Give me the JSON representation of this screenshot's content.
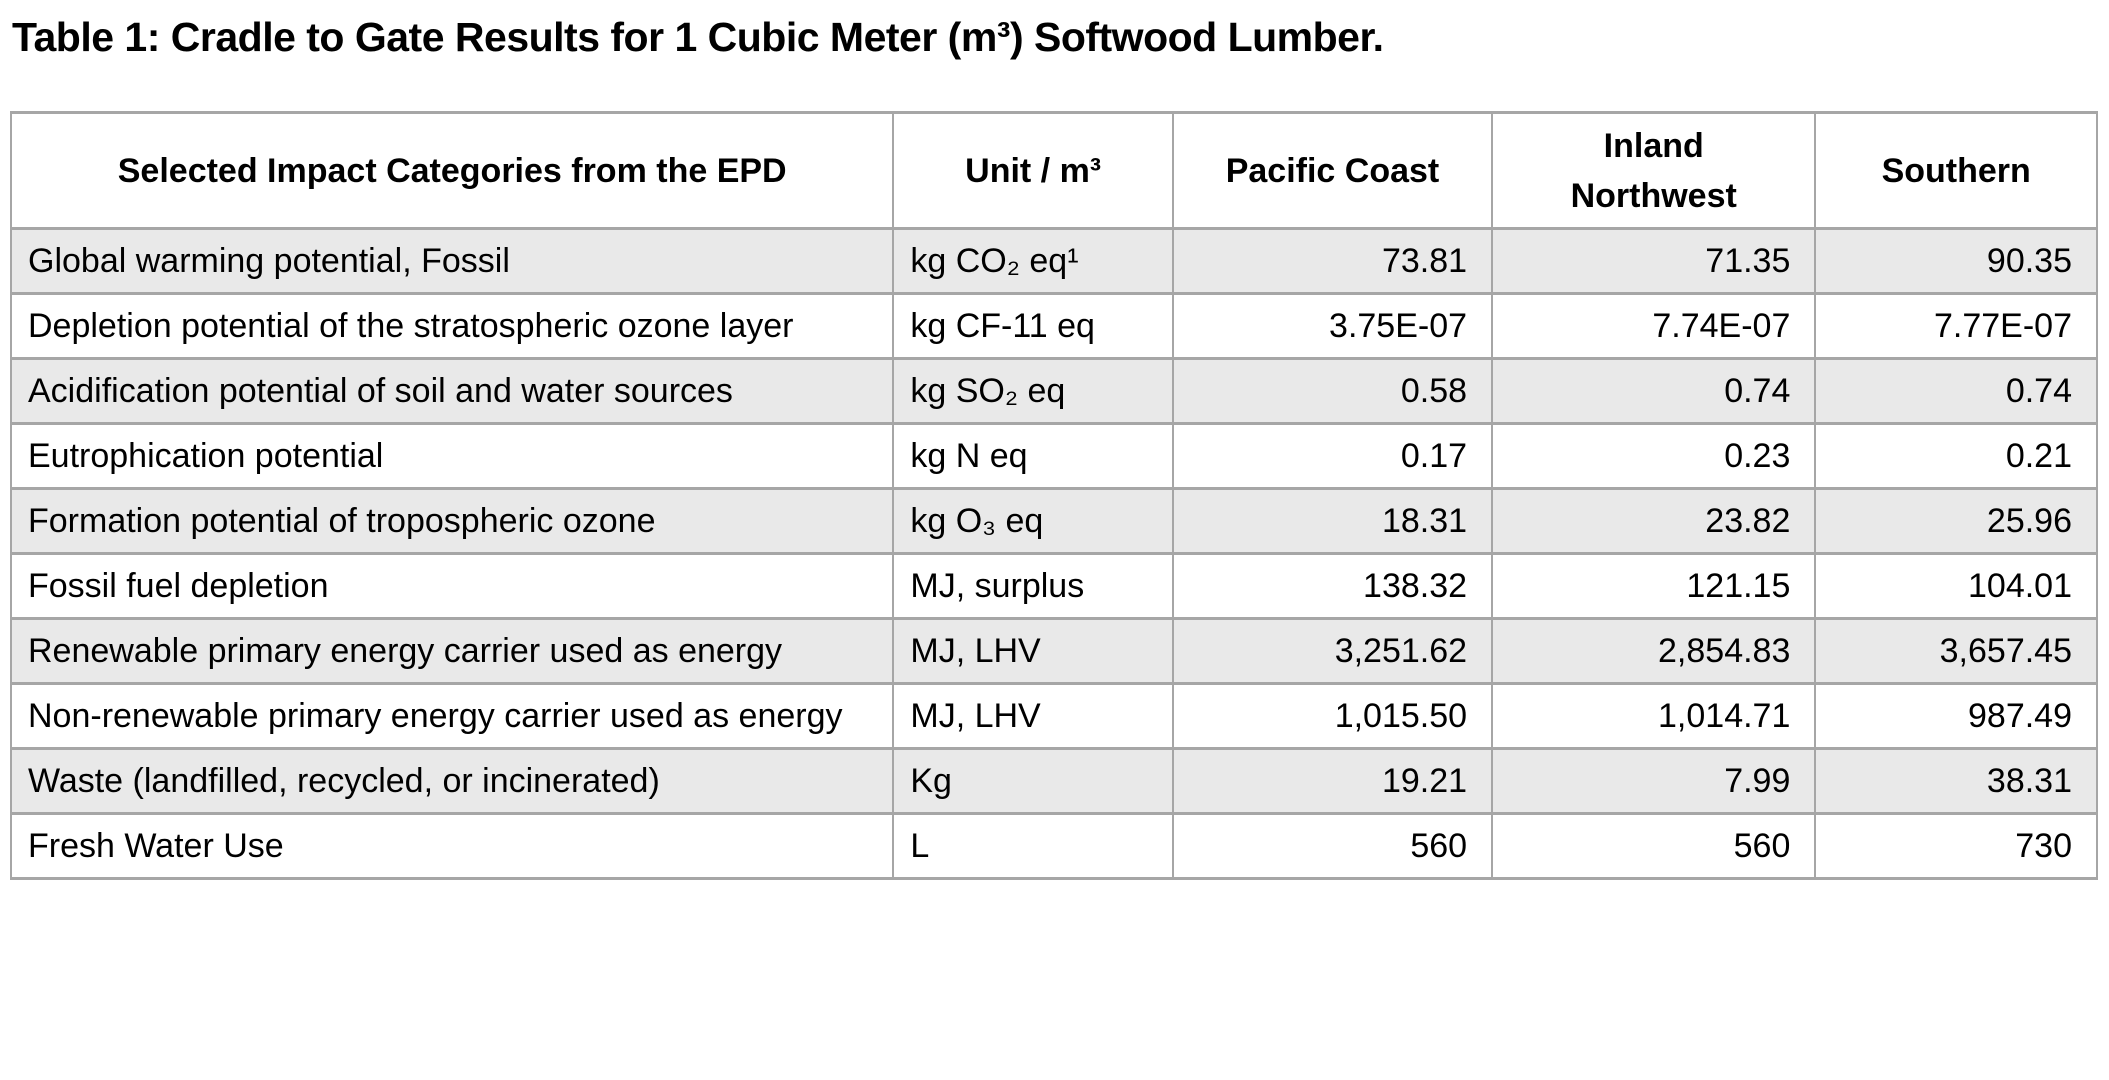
{
  "title": "Table 1: Cradle to Gate Results for 1 Cubic Meter (m³) Softwood Lumber.",
  "table": {
    "columns": [
      "Selected Impact Categories from the EPD",
      "Unit / m³",
      "Pacific Coast",
      "Inland Northwest",
      "Southern"
    ],
    "rows": [
      {
        "category": "Global warming potential, Fossil",
        "unit": "kg CO₂ eq¹",
        "values": [
          "73.81",
          "71.35",
          "90.35"
        ]
      },
      {
        "category": "Depletion potential of the stratospheric ozone layer",
        "unit": "kg CF-11 eq",
        "values": [
          "3.75E-07",
          "7.74E-07",
          "7.77E-07"
        ]
      },
      {
        "category": "Acidification potential of soil and water sources",
        "unit": "kg SO₂ eq",
        "values": [
          "0.58",
          "0.74",
          "0.74"
        ]
      },
      {
        "category": "Eutrophication potential",
        "unit": "kg N eq",
        "values": [
          "0.17",
          "0.23",
          "0.21"
        ]
      },
      {
        "category": "Formation potential of tropospheric ozone",
        "unit": "kg O₃ eq",
        "values": [
          "18.31",
          "23.82",
          "25.96"
        ]
      },
      {
        "category": "Fossil fuel depletion",
        "unit": "MJ, surplus",
        "values": [
          "138.32",
          "121.15",
          "104.01"
        ]
      },
      {
        "category": "Renewable primary energy carrier used as energy",
        "unit": "MJ, LHV",
        "values": [
          "3,251.62",
          "2,854.83",
          "3,657.45"
        ]
      },
      {
        "category": "Non-renewable primary energy carrier used as energy",
        "unit": "MJ, LHV",
        "values": [
          "1,015.50",
          "1,014.71",
          "987.49"
        ]
      },
      {
        "category": "Waste (landfilled, recycled, or incinerated)",
        "unit": "Kg",
        "values": [
          "19.21",
          "7.99",
          "38.31"
        ]
      },
      {
        "category": "Fresh Water Use",
        "unit": "L",
        "values": [
          "560",
          "560",
          "730"
        ]
      }
    ],
    "colors": {
      "row_shade": "#e9e9e9",
      "border": "#a6a6a6",
      "text": "#000000",
      "background": "#ffffff"
    }
  }
}
